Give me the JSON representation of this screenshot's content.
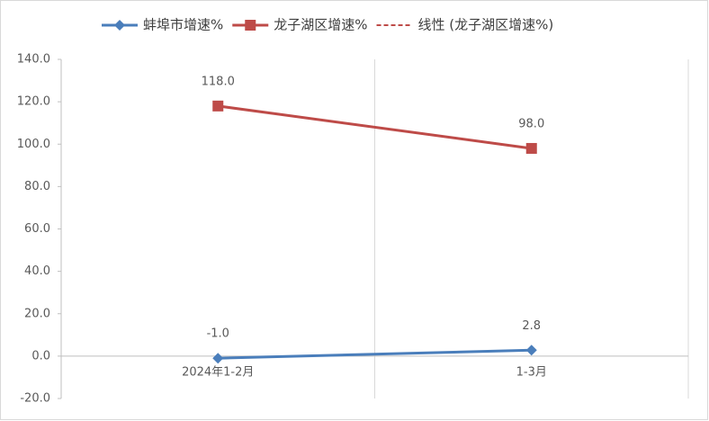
{
  "chart_data": {
    "type": "line",
    "categories": [
      "2024年1-2月",
      "1-3月"
    ],
    "series": [
      {
        "name": "蚌埠市增速%",
        "color": "#4a7ebb",
        "marker": "diamond",
        "values": [
          -1.0,
          2.8
        ],
        "value_labels": [
          "-1.0",
          "2.8"
        ]
      },
      {
        "name": "龙子湖区增速%",
        "color": "#be4b48",
        "marker": "square",
        "values": [
          118.0,
          98.0
        ],
        "value_labels": [
          "118.0",
          "98.0"
        ]
      },
      {
        "name": "线性 (龙子湖区增速%)",
        "color": "#be4b48",
        "dash": true,
        "values": [
          118.0,
          98.0
        ]
      }
    ],
    "ylim": [
      -20,
      140
    ],
    "yticks": [
      {
        "value": -20,
        "label": "-20.0"
      },
      {
        "value": 0,
        "label": "0.0"
      },
      {
        "value": 20,
        "label": "20.0"
      },
      {
        "value": 40,
        "label": "40.0"
      },
      {
        "value": 60,
        "label": "60.0"
      },
      {
        "value": 80,
        "label": "80.0"
      },
      {
        "value": 100,
        "label": "100.0"
      },
      {
        "value": 120,
        "label": "120.0"
      },
      {
        "value": 140,
        "label": "140.0"
      }
    ],
    "xgrid": true,
    "legend": "top"
  }
}
